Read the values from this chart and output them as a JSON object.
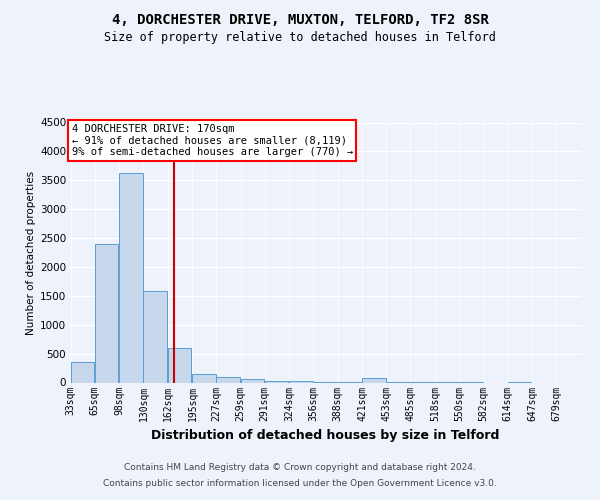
{
  "title": "4, DORCHESTER DRIVE, MUXTON, TELFORD, TF2 8SR",
  "subtitle": "Size of property relative to detached houses in Telford",
  "xlabel": "Distribution of detached houses by size in Telford",
  "ylabel": "Number of detached properties",
  "footer_line1": "Contains HM Land Registry data © Crown copyright and database right 2024.",
  "footer_line2": "Contains public sector information licensed under the Open Government Licence v3.0.",
  "annotation_line1": "4 DORCHESTER DRIVE: 170sqm",
  "annotation_line2": "← 91% of detached houses are smaller (8,119)",
  "annotation_line3": "9% of semi-detached houses are larger (770) →",
  "bar_color": "#c8d8ec",
  "bar_edge_color": "#5a9fd4",
  "redline_color": "#cc0000",
  "redline_x": 170,
  "bins": [
    33,
    65,
    98,
    130,
    162,
    195,
    227,
    259,
    291,
    324,
    356,
    388,
    421,
    453,
    485,
    518,
    550,
    582,
    614,
    647,
    679
  ],
  "counts": [
    355,
    2400,
    3620,
    1580,
    590,
    150,
    90,
    60,
    30,
    20,
    10,
    5,
    80,
    5,
    3,
    2,
    1,
    0,
    1,
    0
  ],
  "ylim": [
    0,
    4500
  ],
  "yticks": [
    0,
    500,
    1000,
    1500,
    2000,
    2500,
    3000,
    3500,
    4000,
    4500
  ],
  "background_color": "#eef2fa",
  "plot_bg_color": "#eef2fa",
  "title_fontsize": 10,
  "subtitle_fontsize": 8.5,
  "xlabel_fontsize": 9,
  "ylabel_fontsize": 7.5,
  "tick_fontsize": 7,
  "footer_fontsize": 6.5,
  "annotation_fontsize": 7.5
}
